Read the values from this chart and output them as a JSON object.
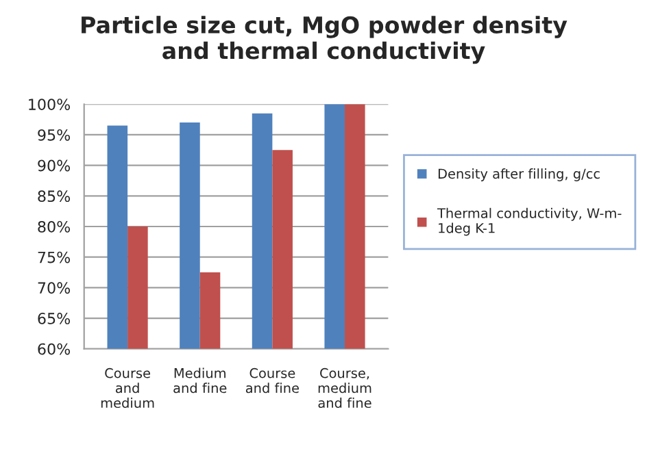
{
  "chart_data": {
    "type": "bar",
    "title": "Particle size cut, MgO powder density\nand thermal conductivity",
    "categories": [
      "Course\nand\nmedium",
      "Medium\nand fine",
      "Course\nand fine",
      "Course,\nmedium\nand fine"
    ],
    "series": [
      {
        "name": "Density after filling, g/cc",
        "color": "#4f81bd",
        "values": [
          96.5,
          97,
          98.5,
          100
        ]
      },
      {
        "name": "Thermal conductivity, W-m-\n1deg K-1",
        "color": "#c0504d",
        "values": [
          80,
          72.5,
          92.5,
          100
        ]
      }
    ],
    "ylim": [
      60,
      100
    ],
    "yticks": [
      {
        "value": 60,
        "label": "60%"
      },
      {
        "value": 65,
        "label": "65%"
      },
      {
        "value": 70,
        "label": "70%"
      },
      {
        "value": 75,
        "label": "75%"
      },
      {
        "value": 80,
        "label": "80%"
      },
      {
        "value": 85,
        "label": "85%"
      },
      {
        "value": 90,
        "label": "90%"
      },
      {
        "value": 95,
        "label": "95%"
      },
      {
        "value": 100,
        "label": "100%"
      }
    ],
    "grid": "y",
    "legend": "right"
  }
}
